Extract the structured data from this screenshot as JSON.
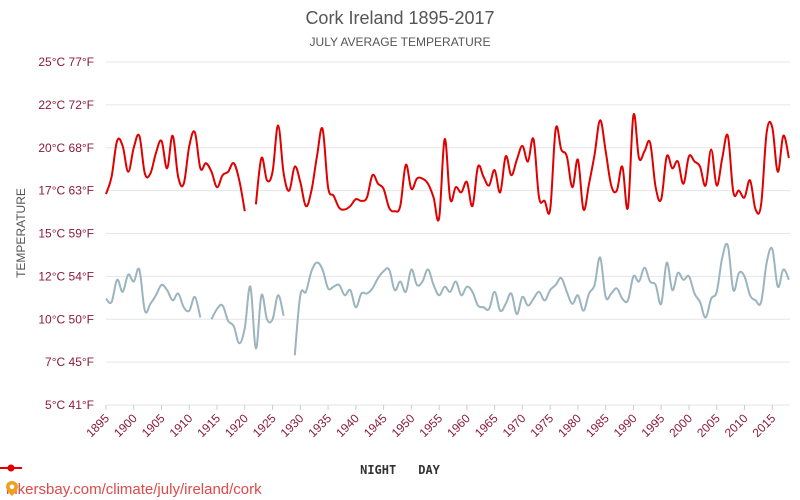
{
  "chart_data": {
    "type": "line",
    "title": "Cork Ireland 1895-2017",
    "subtitle": "JULY AVERAGE TEMPERATURE",
    "ylabel": "TEMPERATURE",
    "xlabel": "",
    "ylim": [
      5,
      25
    ],
    "xlim": [
      1895,
      2017
    ],
    "y_ticks": [
      5,
      7.5,
      10,
      12.5,
      15,
      17.5,
      20,
      22.5,
      25
    ],
    "y_tick_labels": [
      "5°C 41°F",
      "7°C 45°F",
      "10°C 50°F",
      "12°C 54°F",
      "15°C 59°F",
      "17°C 63°F",
      "20°C 68°F",
      "22°C 72°F",
      "25°C 77°F"
    ],
    "x_tick_labels": [
      "1895",
      "1900",
      "1905",
      "1910",
      "1915",
      "1920",
      "1925",
      "1930",
      "1935",
      "1940",
      "1945",
      "1950",
      "1955",
      "1960",
      "1965",
      "1970",
      "1975",
      "1980",
      "1985",
      "1990",
      "1995",
      "2000",
      "2005",
      "2010",
      "2015"
    ],
    "grid": true,
    "legend_position": "bottom",
    "series": [
      {
        "name": "NIGHT",
        "color": "#9bb4bf",
        "points": [
          [
            1895,
            11.2
          ],
          [
            1896,
            11.0
          ],
          [
            1897,
            12.3
          ],
          [
            1898,
            11.6
          ],
          [
            1899,
            12.6
          ],
          [
            1900,
            12.2
          ],
          [
            1901,
            12.9
          ],
          [
            1902,
            10.5
          ],
          [
            1903,
            10.9
          ],
          [
            1904,
            11.4
          ],
          [
            1905,
            12.0
          ],
          [
            1906,
            11.7
          ],
          [
            1907,
            11.1
          ],
          [
            1908,
            11.5
          ],
          [
            1909,
            10.7
          ],
          [
            1910,
            10.5
          ],
          [
            1911,
            11.3
          ],
          [
            1912,
            10.1
          ],
          [
            1914,
            10.0
          ],
          [
            1915,
            10.6
          ],
          [
            1916,
            10.8
          ],
          [
            1917,
            9.9
          ],
          [
            1918,
            9.6
          ],
          [
            1919,
            8.6
          ],
          [
            1920,
            9.5
          ],
          [
            1921,
            11.9
          ],
          [
            1922,
            8.3
          ],
          [
            1923,
            11.4
          ],
          [
            1924,
            10.0
          ],
          [
            1925,
            10.0
          ],
          [
            1926,
            11.4
          ],
          [
            1927,
            10.2
          ],
          [
            1929,
            7.9
          ],
          [
            1930,
            11.4
          ],
          [
            1931,
            11.6
          ],
          [
            1932,
            12.8
          ],
          [
            1933,
            13.3
          ],
          [
            1934,
            12.9
          ],
          [
            1935,
            11.8
          ],
          [
            1936,
            11.9
          ],
          [
            1937,
            12.0
          ],
          [
            1938,
            11.4
          ],
          [
            1939,
            11.7
          ],
          [
            1940,
            10.7
          ],
          [
            1941,
            11.5
          ],
          [
            1942,
            11.5
          ],
          [
            1943,
            11.8
          ],
          [
            1944,
            12.4
          ],
          [
            1945,
            12.8
          ],
          [
            1946,
            12.9
          ],
          [
            1947,
            11.7
          ],
          [
            1948,
            12.2
          ],
          [
            1949,
            11.6
          ],
          [
            1950,
            12.9
          ],
          [
            1951,
            12.0
          ],
          [
            1952,
            12.2
          ],
          [
            1953,
            12.9
          ],
          [
            1954,
            12.0
          ],
          [
            1955,
            11.4
          ],
          [
            1956,
            11.9
          ],
          [
            1957,
            11.6
          ],
          [
            1958,
            12.2
          ],
          [
            1959,
            11.4
          ],
          [
            1960,
            11.9
          ],
          [
            1961,
            11.6
          ],
          [
            1962,
            10.8
          ],
          [
            1963,
            10.7
          ],
          [
            1964,
            10.6
          ],
          [
            1965,
            11.6
          ],
          [
            1966,
            10.5
          ],
          [
            1967,
            10.9
          ],
          [
            1968,
            11.5
          ],
          [
            1969,
            10.3
          ],
          [
            1970,
            11.3
          ],
          [
            1971,
            10.8
          ],
          [
            1972,
            11.2
          ],
          [
            1973,
            11.6
          ],
          [
            1974,
            11.1
          ],
          [
            1975,
            11.7
          ],
          [
            1976,
            12.0
          ],
          [
            1977,
            12.4
          ],
          [
            1978,
            11.6
          ],
          [
            1979,
            10.9
          ],
          [
            1980,
            11.4
          ],
          [
            1981,
            10.5
          ],
          [
            1982,
            11.5
          ],
          [
            1983,
            12.0
          ],
          [
            1984,
            13.6
          ],
          [
            1985,
            11.3
          ],
          [
            1986,
            11.5
          ],
          [
            1987,
            11.8
          ],
          [
            1988,
            11.2
          ],
          [
            1989,
            11.1
          ],
          [
            1990,
            12.5
          ],
          [
            1991,
            12.2
          ],
          [
            1992,
            13.0
          ],
          [
            1993,
            12.2
          ],
          [
            1994,
            12.0
          ],
          [
            1995,
            10.9
          ],
          [
            1996,
            13.3
          ],
          [
            1997,
            11.7
          ],
          [
            1998,
            12.7
          ],
          [
            1999,
            12.3
          ],
          [
            2000,
            12.5
          ],
          [
            2001,
            11.5
          ],
          [
            2002,
            11.0
          ],
          [
            2003,
            10.1
          ],
          [
            2004,
            11.2
          ],
          [
            2005,
            11.6
          ],
          [
            2006,
            13.6
          ],
          [
            2007,
            14.3
          ],
          [
            2008,
            11.7
          ],
          [
            2009,
            12.7
          ],
          [
            2010,
            12.5
          ],
          [
            2011,
            11.4
          ],
          [
            2012,
            11.1
          ],
          [
            2013,
            11.0
          ],
          [
            2014,
            13.3
          ],
          [
            2015,
            14.1
          ],
          [
            2016,
            11.9
          ],
          [
            2017,
            12.9
          ],
          [
            2018,
            12.3
          ]
        ]
      },
      {
        "name": "DAY",
        "color": "#e00000",
        "points": [
          [
            1895,
            17.3
          ],
          [
            1896,
            18.3
          ],
          [
            1897,
            20.4
          ],
          [
            1898,
            20.1
          ],
          [
            1899,
            18.6
          ],
          [
            1900,
            20.0
          ],
          [
            1901,
            20.7
          ],
          [
            1902,
            18.5
          ],
          [
            1903,
            18.5
          ],
          [
            1904,
            19.7
          ],
          [
            1905,
            20.4
          ],
          [
            1906,
            18.8
          ],
          [
            1907,
            20.7
          ],
          [
            1908,
            18.3
          ],
          [
            1909,
            17.9
          ],
          [
            1910,
            20.1
          ],
          [
            1911,
            20.9
          ],
          [
            1912,
            18.8
          ],
          [
            1913,
            19.1
          ],
          [
            1914,
            18.6
          ],
          [
            1915,
            17.7
          ],
          [
            1916,
            18.4
          ],
          [
            1917,
            18.6
          ],
          [
            1918,
            19.1
          ],
          [
            1919,
            18.1
          ],
          [
            1920,
            16.3
          ],
          [
            1922,
            16.7
          ],
          [
            1923,
            19.4
          ],
          [
            1924,
            18.1
          ],
          [
            1925,
            18.6
          ],
          [
            1926,
            21.3
          ],
          [
            1927,
            18.5
          ],
          [
            1928,
            17.5
          ],
          [
            1929,
            18.9
          ],
          [
            1930,
            18.0
          ],
          [
            1931,
            16.6
          ],
          [
            1932,
            17.5
          ],
          [
            1933,
            19.5
          ],
          [
            1934,
            21.1
          ],
          [
            1935,
            17.7
          ],
          [
            1936,
            17.2
          ],
          [
            1937,
            16.5
          ],
          [
            1938,
            16.4
          ],
          [
            1939,
            16.6
          ],
          [
            1940,
            17.0
          ],
          [
            1941,
            16.9
          ],
          [
            1942,
            17.1
          ],
          [
            1943,
            18.4
          ],
          [
            1944,
            17.9
          ],
          [
            1945,
            17.6
          ],
          [
            1946,
            16.5
          ],
          [
            1947,
            16.3
          ],
          [
            1948,
            16.6
          ],
          [
            1949,
            19.0
          ],
          [
            1950,
            17.6
          ],
          [
            1951,
            18.2
          ],
          [
            1952,
            18.2
          ],
          [
            1953,
            17.9
          ],
          [
            1954,
            17.1
          ],
          [
            1955,
            15.9
          ],
          [
            1956,
            20.5
          ],
          [
            1957,
            17.0
          ],
          [
            1958,
            17.7
          ],
          [
            1959,
            17.4
          ],
          [
            1960,
            18.0
          ],
          [
            1961,
            16.6
          ],
          [
            1962,
            18.9
          ],
          [
            1963,
            18.3
          ],
          [
            1964,
            17.8
          ],
          [
            1965,
            18.7
          ],
          [
            1966,
            17.4
          ],
          [
            1967,
            19.5
          ],
          [
            1968,
            18.4
          ],
          [
            1969,
            19.3
          ],
          [
            1970,
            20.1
          ],
          [
            1971,
            19.2
          ],
          [
            1972,
            20.5
          ],
          [
            1973,
            17.1
          ],
          [
            1974,
            16.9
          ],
          [
            1975,
            16.4
          ],
          [
            1976,
            21.1
          ],
          [
            1977,
            19.9
          ],
          [
            1978,
            19.5
          ],
          [
            1979,
            17.7
          ],
          [
            1980,
            19.3
          ],
          [
            1981,
            16.4
          ],
          [
            1982,
            17.9
          ],
          [
            1983,
            19.6
          ],
          [
            1984,
            21.6
          ],
          [
            1985,
            19.8
          ],
          [
            1986,
            17.8
          ],
          [
            1987,
            17.5
          ],
          [
            1988,
            18.9
          ],
          [
            1989,
            16.5
          ],
          [
            1990,
            21.9
          ],
          [
            1991,
            19.4
          ],
          [
            1992,
            19.8
          ],
          [
            1993,
            20.3
          ],
          [
            1994,
            17.7
          ],
          [
            1995,
            17.0
          ],
          [
            1996,
            19.5
          ],
          [
            1997,
            18.8
          ],
          [
            1998,
            19.2
          ],
          [
            1999,
            17.9
          ],
          [
            2000,
            19.5
          ],
          [
            2001,
            19.2
          ],
          [
            2002,
            18.9
          ],
          [
            2003,
            17.8
          ],
          [
            2004,
            19.9
          ],
          [
            2005,
            17.8
          ],
          [
            2006,
            19.4
          ],
          [
            2007,
            20.7
          ],
          [
            2008,
            17.4
          ],
          [
            2009,
            17.5
          ],
          [
            2010,
            17.1
          ],
          [
            2011,
            18.1
          ],
          [
            2012,
            16.4
          ],
          [
            2013,
            16.7
          ],
          [
            2014,
            20.9
          ],
          [
            2015,
            21.2
          ],
          [
            2016,
            18.6
          ],
          [
            2017,
            20.7
          ],
          [
            2018,
            19.4
          ]
        ]
      }
    ]
  },
  "watermark": "hikersbay.com/climate/july/ireland/cork"
}
